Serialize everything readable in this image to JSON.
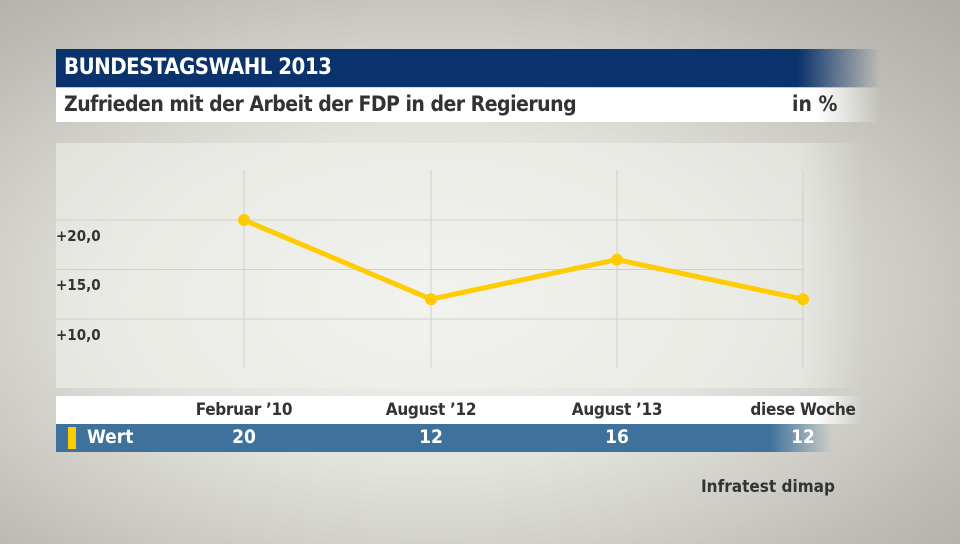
{
  "header": {
    "title": "BUNDESTAGSWAHL 2013",
    "subtitle": "Zufrieden mit der Arbeit der FDP in der Regierung",
    "unit": "in %"
  },
  "chart_data": {
    "type": "line",
    "categories": [
      "Februar ’10",
      "August ’12",
      "August ’13",
      "diese Woche"
    ],
    "series": [
      {
        "name": "Wert",
        "values": [
          20,
          12,
          16,
          12
        ],
        "color": "#fecc00"
      }
    ],
    "yticks": [
      "+10,0",
      "+15,0",
      "+20,0"
    ],
    "ytick_values": [
      10,
      15,
      20
    ],
    "ylim": [
      5,
      25
    ],
    "grid": true,
    "legend": "table-below"
  },
  "source": "Infratest dimap"
}
